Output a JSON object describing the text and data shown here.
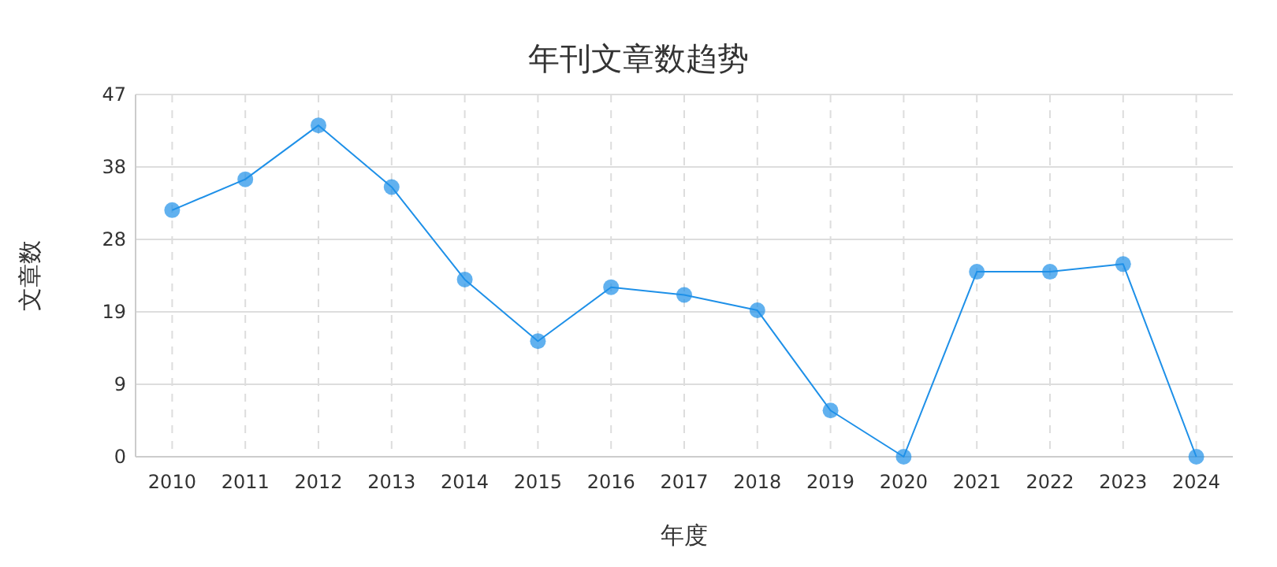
{
  "chart_data": {
    "type": "line",
    "title": "年刊文章数趋势",
    "xlabel": "年度",
    "ylabel": "文章数",
    "categories": [
      "2010",
      "2011",
      "2012",
      "2013",
      "2014",
      "2015",
      "2016",
      "2017",
      "2018",
      "2019",
      "2020",
      "2021",
      "2022",
      "2023",
      "2024"
    ],
    "series": [
      {
        "color": "#1e90e8",
        "values": [
          32,
          36,
          43,
          35,
          23,
          15,
          22,
          21,
          19,
          6,
          0,
          24,
          24,
          25,
          0
        ]
      }
    ],
    "ylim": [
      0,
      47
    ],
    "yticks": [
      0,
      {
        "value": 9.4,
        "label": "9"
      },
      {
        "value": 18.8,
        "label": "19"
      },
      {
        "value": 28.2,
        "label": "28"
      },
      {
        "value": 37.6,
        "label": "38"
      },
      47
    ],
    "grid": true,
    "marker": "circle",
    "line_style": "solid"
  }
}
